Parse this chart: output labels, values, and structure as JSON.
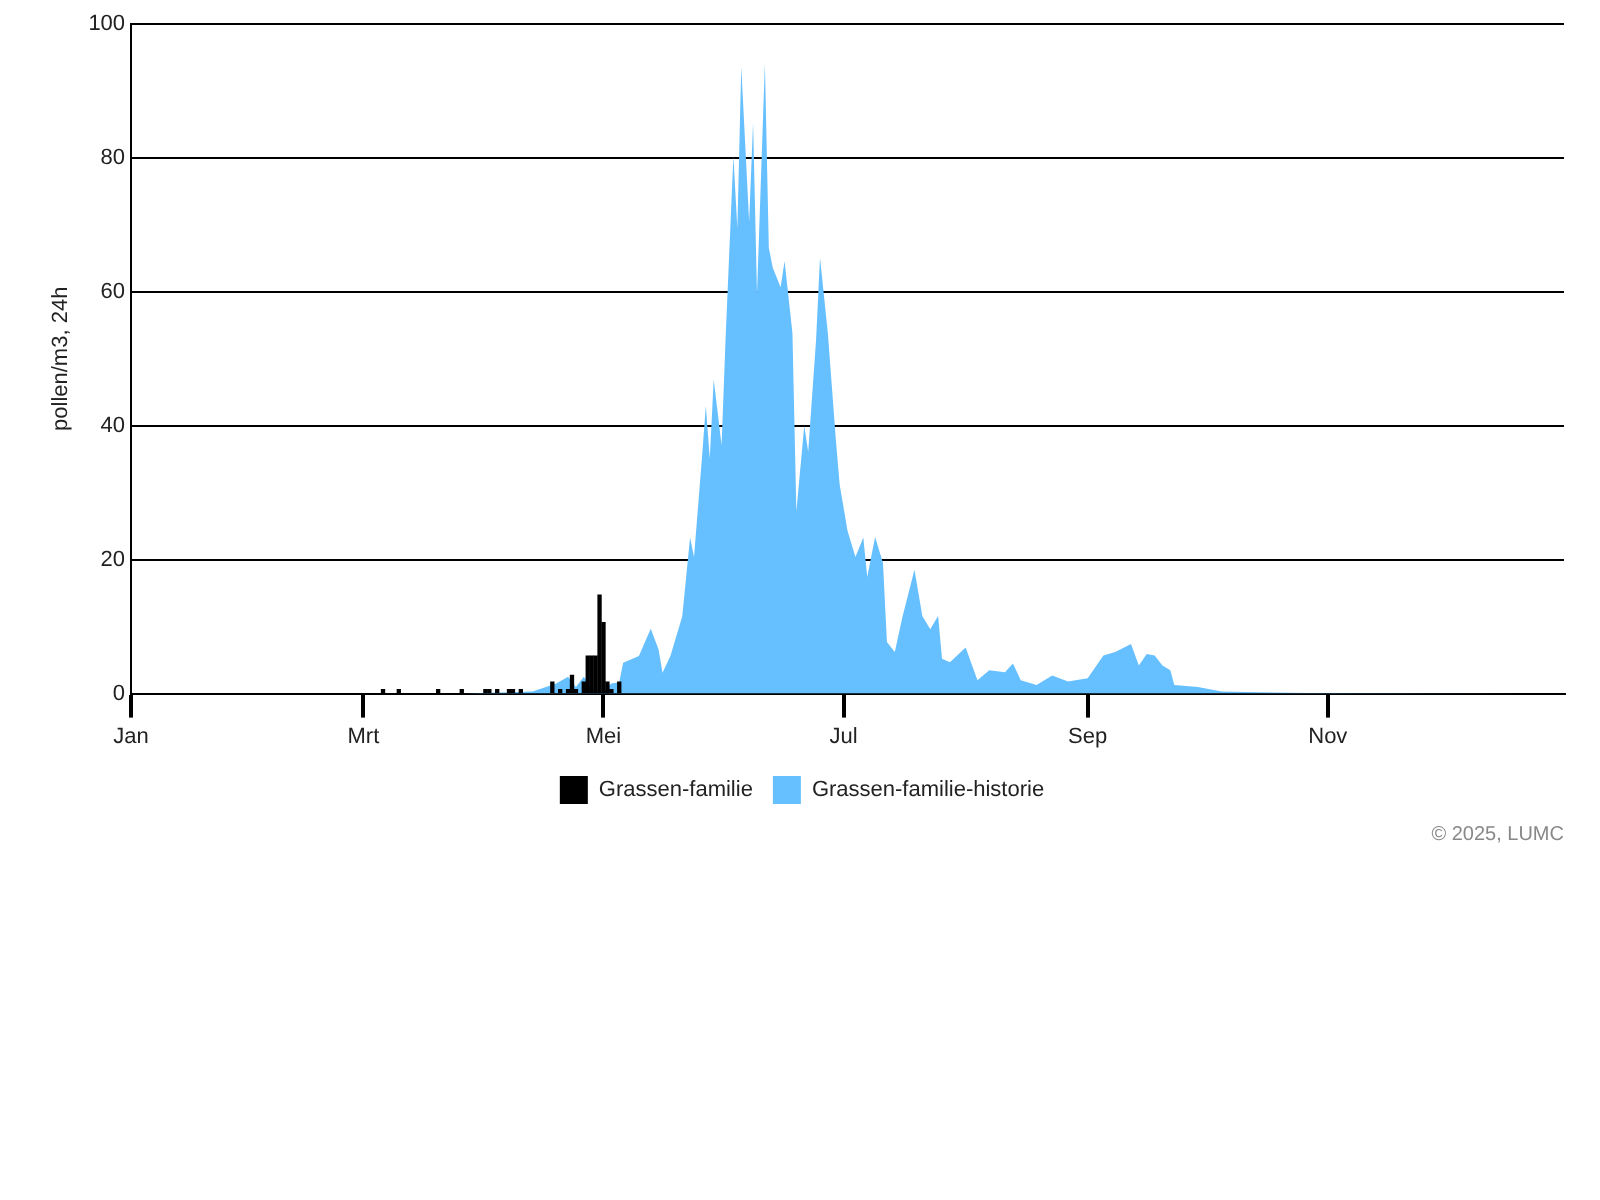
{
  "chart_data": {
    "type": "area",
    "ylabel": "pollen/m3, 24h",
    "xlim": [
      "--01-01",
      "--12-31"
    ],
    "xticks": [
      {
        "value": "--01-01",
        "label": "Jan"
      },
      {
        "value": "--03-01",
        "label": "Mrt"
      },
      {
        "value": "--05-01",
        "label": "Mei"
      },
      {
        "value": "--07-01",
        "label": "Jul"
      },
      {
        "value": "--09-01",
        "label": "Sep"
      },
      {
        "value": "--11-01",
        "label": "Nov"
      }
    ],
    "ylim": [
      0,
      100
    ],
    "yticks": [
      0,
      20,
      40,
      60,
      80,
      100
    ],
    "grid": "y",
    "legend": "bottom",
    "annotations": [
      "© 2025, LUMC"
    ],
    "series": [
      {
        "name": "Grassen-familie",
        "type": "bar",
        "color": "#000000",
        "x": [
          "--03-06",
          "--03-10",
          "--03-20",
          "--03-26",
          "--04-01",
          "--04-02",
          "--04-04",
          "--04-07",
          "--04-08",
          "--04-10",
          "--04-18",
          "--04-20",
          "--04-22",
          "--04-23",
          "--04-24",
          "--04-26",
          "--04-27",
          "--04-28",
          "--04-29",
          "--04-30",
          "--05-01",
          "--05-02",
          "--05-03",
          "--05-05"
        ],
        "values": [
          0.6,
          0.6,
          0.6,
          0.6,
          0.6,
          0.6,
          0.6,
          0.6,
          0.6,
          0.6,
          1.7,
          0.6,
          0.6,
          2.7,
          0.6,
          1.7,
          5.6,
          5.6,
          5.6,
          14.7,
          10.6,
          1.7,
          0.6,
          1.7
        ]
      },
      {
        "name": "Grassen-familie-historie",
        "color": "#66bfff",
        "x": [
          "--03-26",
          "--04-13",
          "--04-19",
          "--04-22",
          "--04-24",
          "--04-26",
          "--04-28",
          "--05-01",
          "--05-03",
          "--05-05",
          "--05-06",
          "--05-10",
          "--05-13",
          "--05-15",
          "--05-16",
          "--05-18",
          "--05-21",
          "--05-23",
          "--05-24",
          "--05-26",
          "--05-27",
          "--05-28",
          "--05-29",
          "--05-31",
          "--06-01",
          "--06-03",
          "--06-04",
          "--06-05",
          "--06-07",
          "--06-08",
          "--06-09",
          "--06-11",
          "--06-12",
          "--06-13",
          "--06-15",
          "--06-16",
          "--06-18",
          "--06-19",
          "--06-21",
          "--06-22",
          "--06-24",
          "--06-25",
          "--06-27",
          "--06-29",
          "--06-30",
          "--07-02",
          "--07-04",
          "--07-06",
          "--07-07",
          "--07-09",
          "--07-11",
          "--07-12",
          "--07-14",
          "--07-16",
          "--07-19",
          "--07-21",
          "--07-23",
          "--07-25",
          "--07-26",
          "--07-28",
          "--08-01",
          "--08-04",
          "--08-07",
          "--08-11",
          "--08-13",
          "--08-15",
          "--08-19",
          "--08-23",
          "--08-27",
          "--09-01",
          "--09-05",
          "--09-08",
          "--09-12",
          "--09-14",
          "--09-16",
          "--09-18",
          "--09-20",
          "--09-22",
          "--09-23",
          "--09-29",
          "--10-05",
          "--10-14",
          "--10-27",
          "--12-21"
        ],
        "values": [
          0,
          0.3,
          1.5,
          2.5,
          1.0,
          2.5,
          1.0,
          0.5,
          1.5,
          1.7,
          4.6,
          5.6,
          9.7,
          6.6,
          3.1,
          5.6,
          11.5,
          23.3,
          20.4,
          35.1,
          43.0,
          35.1,
          46.9,
          37.1,
          52.8,
          80.3,
          69.5,
          93.6,
          70.5,
          85.3,
          59.7,
          94.1,
          66.6,
          63.6,
          60.7,
          64.6,
          53.8,
          27.2,
          40.0,
          36.1,
          52.8,
          65.1,
          53.8,
          38.1,
          31.2,
          24.3,
          20.4,
          23.3,
          17.4,
          23.4,
          19.5,
          7.7,
          6.2,
          11.6,
          18.5,
          11.6,
          9.6,
          11.6,
          5.2,
          4.7,
          6.9,
          2.0,
          3.5,
          3.2,
          4.5,
          2.0,
          1.3,
          2.7,
          1.8,
          2.3,
          5.7,
          6.2,
          7.4,
          4.2,
          5.9,
          5.7,
          4.2,
          3.5,
          1.3,
          1.0,
          0.3,
          0.2,
          0.1,
          0
        ]
      }
    ]
  }
}
